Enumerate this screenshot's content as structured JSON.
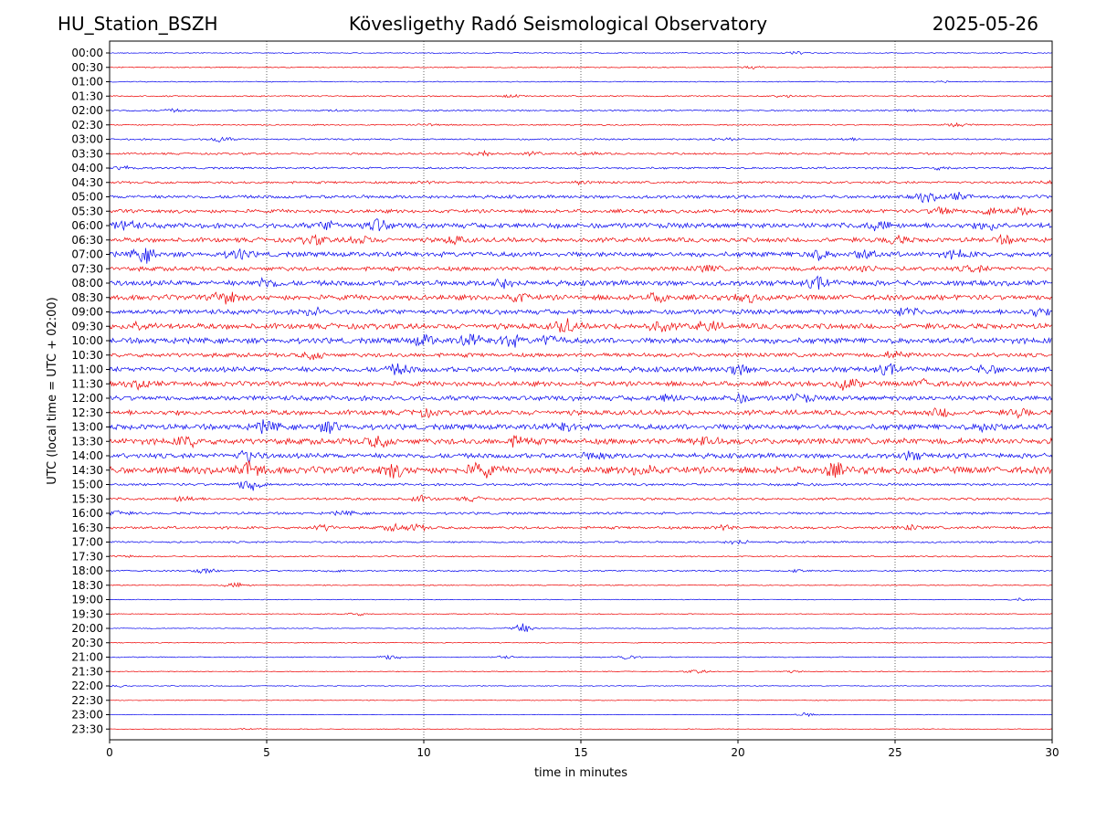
{
  "header": {
    "station": "HU_Station_BSZH",
    "observatory": "Kövesligethy Radó Seismological Observatory",
    "date": "2025-05-26"
  },
  "chart_data": {
    "type": "line",
    "xlabel": "time in minutes",
    "ylabel": "UTC (local time = UTC + 02:00)",
    "xlim": [
      0,
      30
    ],
    "x_ticks": [
      0,
      5,
      10,
      15,
      20,
      25,
      30
    ],
    "x_gridlines": [
      5,
      10,
      15,
      20,
      25
    ],
    "row_colors": [
      "#0000ee",
      "#ee0000"
    ],
    "rows": [
      {
        "label": "00:00",
        "amp": 0.6,
        "events": [
          [
            21.9,
            1.4
          ]
        ]
      },
      {
        "label": "00:30",
        "amp": 0.6,
        "events": [
          [
            20.5,
            1.6
          ]
        ]
      },
      {
        "label": "01:00",
        "amp": 0.6,
        "events": [
          [
            26.5,
            1.0
          ]
        ]
      },
      {
        "label": "01:30",
        "amp": 0.8,
        "events": [
          [
            12.8,
            1.2
          ],
          [
            21.5,
            1.5
          ],
          [
            30.0,
            1.0
          ]
        ]
      },
      {
        "label": "02:00",
        "amp": 0.9,
        "events": [
          [
            2.0,
            1.5
          ],
          [
            7.3,
            1.0
          ],
          [
            25.5,
            1.0
          ]
        ]
      },
      {
        "label": "02:30",
        "amp": 0.8,
        "events": [
          [
            10.2,
            1.5
          ],
          [
            27.0,
            2.5
          ]
        ]
      },
      {
        "label": "03:00",
        "amp": 1.0,
        "events": [
          [
            3.5,
            3.0
          ],
          [
            19.5,
            2.0
          ],
          [
            23.5,
            1.2
          ]
        ]
      },
      {
        "label": "03:30",
        "amp": 1.2,
        "events": [
          [
            11.9,
            3.5
          ],
          [
            13.5,
            1.5
          ],
          [
            15.2,
            1.8
          ]
        ]
      },
      {
        "label": "04:00",
        "amp": 1.2,
        "events": [
          [
            0.5,
            2.5
          ],
          [
            26.5,
            1.5
          ]
        ]
      },
      {
        "label": "04:30",
        "amp": 1.4,
        "events": [
          [
            10.0,
            1.5
          ],
          [
            15.0,
            1.5
          ],
          [
            30.0,
            1.5
          ]
        ]
      },
      {
        "label": "05:00",
        "amp": 2.0,
        "events": [
          [
            26.0,
            5.0
          ],
          [
            27.0,
            4.0
          ]
        ]
      },
      {
        "label": "05:30",
        "amp": 2.2,
        "events": [
          [
            26.5,
            5.5
          ],
          [
            28.0,
            5.0
          ],
          [
            29.0,
            4.0
          ]
        ]
      },
      {
        "label": "06:00",
        "amp": 3.2,
        "events": [
          [
            0.5,
            6.0
          ],
          [
            7.0,
            4.0
          ],
          [
            8.5,
            7.0
          ],
          [
            24.5,
            4.5
          ],
          [
            28.0,
            4.0
          ]
        ]
      },
      {
        "label": "06:30",
        "amp": 2.8,
        "events": [
          [
            6.5,
            4.5
          ],
          [
            8.0,
            4.5
          ],
          [
            11.0,
            3.5
          ],
          [
            25.0,
            4.5
          ],
          [
            28.5,
            3.5
          ]
        ]
      },
      {
        "label": "07:00",
        "amp": 3.0,
        "events": [
          [
            1.1,
            8.0
          ],
          [
            4.1,
            5.0
          ],
          [
            22.5,
            5.0
          ],
          [
            24.0,
            4.5
          ],
          [
            27.0,
            4.0
          ]
        ]
      },
      {
        "label": "07:30",
        "amp": 2.6,
        "events": [
          [
            19.0,
            3.5
          ],
          [
            24.0,
            3.5
          ],
          [
            27.5,
            3.5
          ]
        ]
      },
      {
        "label": "08:00",
        "amp": 3.2,
        "events": [
          [
            5.0,
            5.0
          ],
          [
            12.5,
            5.0
          ],
          [
            22.6,
            6.0
          ]
        ]
      },
      {
        "label": "08:30",
        "amp": 3.2,
        "events": [
          [
            3.7,
            8.0
          ],
          [
            13.0,
            4.0
          ],
          [
            17.5,
            4.0
          ],
          [
            20.3,
            4.0
          ]
        ]
      },
      {
        "label": "09:00",
        "amp": 3.0,
        "events": [
          [
            6.5,
            3.5
          ],
          [
            25.3,
            4.5
          ],
          [
            29.5,
            4.0
          ]
        ]
      },
      {
        "label": "09:30",
        "amp": 3.4,
        "events": [
          [
            1.0,
            4.5
          ],
          [
            14.5,
            7.0
          ],
          [
            17.5,
            5.5
          ],
          [
            19.0,
            5.5
          ]
        ]
      },
      {
        "label": "10:00",
        "amp": 3.4,
        "events": [
          [
            10.0,
            5.5
          ],
          [
            11.5,
            5.5
          ],
          [
            12.7,
            6.5
          ],
          [
            14.0,
            4.5
          ]
        ]
      },
      {
        "label": "10:30",
        "amp": 2.5,
        "events": [
          [
            6.5,
            3.5
          ],
          [
            25.0,
            3.5
          ]
        ]
      },
      {
        "label": "11:00",
        "amp": 3.2,
        "events": [
          [
            9.2,
            5.0
          ],
          [
            20.0,
            5.0
          ],
          [
            24.8,
            4.5
          ],
          [
            28.0,
            4.0
          ]
        ]
      },
      {
        "label": "11:30",
        "amp": 3.0,
        "events": [
          [
            23.5,
            6.0
          ],
          [
            1.0,
            4.0
          ],
          [
            26.0,
            4.0
          ]
        ]
      },
      {
        "label": "12:00",
        "amp": 3.0,
        "events": [
          [
            17.8,
            4.0
          ],
          [
            20.0,
            4.0
          ],
          [
            22.0,
            4.0
          ]
        ]
      },
      {
        "label": "12:30",
        "amp": 3.0,
        "events": [
          [
            10.0,
            3.5
          ],
          [
            26.5,
            4.5
          ],
          [
            29.0,
            4.0
          ]
        ]
      },
      {
        "label": "13:00",
        "amp": 3.4,
        "events": [
          [
            5.0,
            6.0
          ],
          [
            7.0,
            5.5
          ],
          [
            14.5,
            4.5
          ],
          [
            28.0,
            4.5
          ]
        ]
      },
      {
        "label": "13:30",
        "amp": 3.6,
        "events": [
          [
            2.5,
            5.0
          ],
          [
            8.5,
            5.5
          ],
          [
            13.0,
            5.0
          ],
          [
            19.0,
            4.5
          ]
        ]
      },
      {
        "label": "14:00",
        "amp": 3.0,
        "events": [
          [
            4.4,
            6.0
          ],
          [
            15.5,
            4.0
          ],
          [
            25.5,
            4.0
          ]
        ]
      },
      {
        "label": "14:30",
        "amp": 4.2,
        "events": [
          [
            4.5,
            9.0
          ],
          [
            9.0,
            7.0
          ],
          [
            11.8,
            8.0
          ],
          [
            17.0,
            6.0
          ],
          [
            23.0,
            7.0
          ]
        ]
      },
      {
        "label": "15:00",
        "amp": 1.5,
        "events": [
          [
            4.5,
            9.0
          ],
          [
            22.0,
            1.5
          ]
        ]
      },
      {
        "label": "15:30",
        "amp": 1.5,
        "events": [
          [
            2.4,
            3.5
          ],
          [
            9.9,
            3.0
          ],
          [
            11.5,
            2.0
          ]
        ]
      },
      {
        "label": "16:00",
        "amp": 1.5,
        "events": [
          [
            0.2,
            3.0
          ],
          [
            7.5,
            2.0
          ]
        ]
      },
      {
        "label": "16:30",
        "amp": 1.6,
        "events": [
          [
            6.8,
            3.0
          ],
          [
            9.1,
            3.5
          ],
          [
            9.8,
            3.0
          ],
          [
            19.5,
            3.0
          ],
          [
            25.5,
            2.5
          ]
        ]
      },
      {
        "label": "17:00",
        "amp": 1.1,
        "events": [
          [
            20.0,
            2.5
          ]
        ]
      },
      {
        "label": "17:30",
        "amp": 0.8,
        "events": [
          [
            0.5,
            1.2
          ]
        ]
      },
      {
        "label": "18:00",
        "amp": 0.9,
        "events": [
          [
            3.0,
            3.0
          ],
          [
            7.2,
            1.5
          ],
          [
            21.9,
            1.5
          ]
        ]
      },
      {
        "label": "18:30",
        "amp": 0.6,
        "events": [
          [
            4.0,
            3.0
          ]
        ]
      },
      {
        "label": "19:00",
        "amp": 0.5,
        "events": [
          [
            29.0,
            1.5
          ]
        ]
      },
      {
        "label": "19:30",
        "amp": 0.5,
        "events": [
          [
            7.8,
            2.0
          ]
        ]
      },
      {
        "label": "20:00",
        "amp": 0.5,
        "events": [
          [
            13.1,
            6.0
          ]
        ]
      },
      {
        "label": "20:30",
        "amp": 0.5,
        "events": []
      },
      {
        "label": "21:00",
        "amp": 0.6,
        "events": [
          [
            9.0,
            3.0
          ],
          [
            12.5,
            1.5
          ],
          [
            16.5,
            2.5
          ]
        ]
      },
      {
        "label": "21:30",
        "amp": 0.5,
        "events": [
          [
            18.7,
            2.0
          ],
          [
            21.7,
            1.0
          ]
        ]
      },
      {
        "label": "22:00",
        "amp": 0.5,
        "events": [
          [
            0.3,
            1.0
          ]
        ]
      },
      {
        "label": "22:30",
        "amp": 0.4,
        "events": []
      },
      {
        "label": "23:00",
        "amp": 0.4,
        "events": [
          [
            22.2,
            2.0
          ]
        ]
      },
      {
        "label": "23:30",
        "amp": 0.4,
        "events": [
          [
            4.5,
            0.8
          ]
        ]
      }
    ]
  }
}
